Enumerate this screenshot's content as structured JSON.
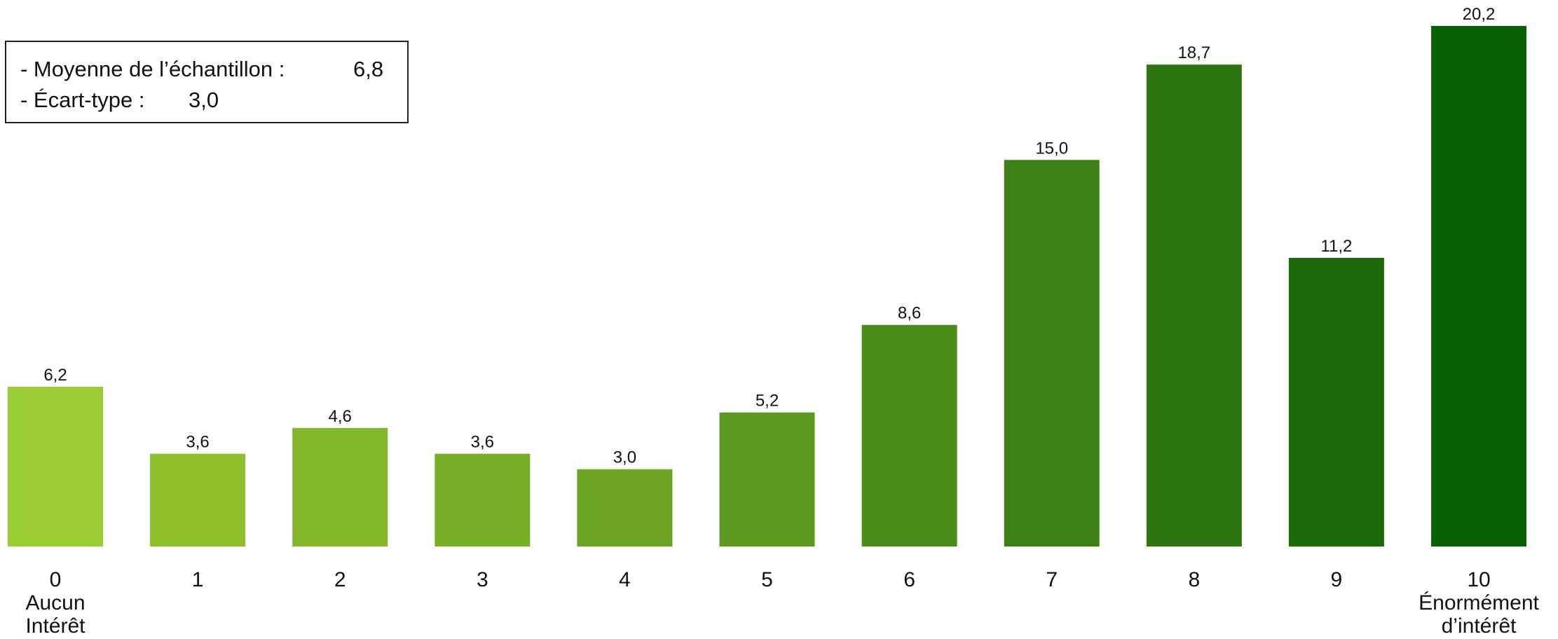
{
  "legend": {
    "mean_label": "- Moyenne de l’échantillon :",
    "mean_value": "6,8",
    "sd_label": "- Écart-type :",
    "sd_value": "3,0"
  },
  "chart_data": {
    "type": "bar",
    "title": "",
    "xlabel": "",
    "ylabel": "",
    "categories": [
      "0",
      "1",
      "2",
      "3",
      "4",
      "5",
      "6",
      "7",
      "8",
      "9",
      "10"
    ],
    "category_sublabels": [
      [
        "Aucun",
        "Intérêt"
      ],
      [],
      [],
      [],
      [],
      [],
      [],
      [],
      [],
      [],
      [
        "Énormément",
        "d’intérêt"
      ]
    ],
    "values": [
      6.2,
      3.6,
      4.6,
      3.6,
      3.0,
      5.2,
      8.6,
      15.0,
      18.7,
      11.2,
      20.2
    ],
    "value_labels": [
      "6,2",
      "3,6",
      "4,6",
      "3,6",
      "3,0",
      "5,2",
      "8,6",
      "15,0",
      "18,7",
      "11,2",
      "20,2"
    ],
    "colors": [
      "#9ACD32",
      "#8DBF2C",
      "#82B72A",
      "#76AE26",
      "#6AA422",
      "#5C9A1F",
      "#4B8C19",
      "#3A7E14",
      "#2D760F",
      "#1D6A0A",
      "#0A6004"
    ],
    "ylim": [
      0,
      20.2
    ],
    "grid": false,
    "axis_visible": false
  }
}
